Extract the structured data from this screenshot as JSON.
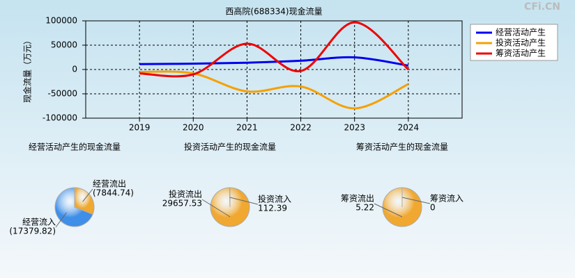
{
  "watermark": "CFi.CN",
  "chart_data": [
    {
      "type": "line",
      "title": "西高院(688334)现金流量",
      "y_label": "现金流量（万元）",
      "categories": [
        "2019",
        "2020",
        "2021",
        "2022",
        "2023",
        "2024"
      ],
      "series": [
        {
          "name": "经营活动产生",
          "color": "#0000ee",
          "values": [
            11000,
            12000,
            14000,
            18000,
            25000,
            8000
          ]
        },
        {
          "name": "投资活动产生",
          "color": "#f5a000",
          "values": [
            -5000,
            -8000,
            -45000,
            -35000,
            -80000,
            -30000
          ]
        },
        {
          "name": "筹资活动产生",
          "color": "#ee0000",
          "values": [
            -8000,
            -10000,
            53000,
            -3000,
            97000,
            0
          ]
        }
      ],
      "ylim": [
        -100000,
        100000
      ],
      "yticks": [
        -100000,
        -50000,
        0,
        50000,
        100000
      ],
      "grid": true,
      "legend": "top-right"
    },
    {
      "type": "pie",
      "title": "经营活动产生的现金流量",
      "categories": [
        "经营流出",
        "经营流入"
      ],
      "values": [
        7844.74,
        17379.82
      ],
      "value_labels": [
        "(7844.74)",
        "(17379.82)"
      ],
      "colors": [
        "#f0a830",
        "#3f8ee8"
      ]
    },
    {
      "type": "pie",
      "title": "投资活动产生的现金流量",
      "categories": [
        "投资流出",
        "投资流入"
      ],
      "values": [
        29657.53,
        112.39
      ],
      "colors": [
        "#f0a830",
        "#3f8ee8"
      ]
    },
    {
      "type": "pie",
      "title": "筹资活动产生的现金流量",
      "categories": [
        "筹资流出",
        "筹资流入"
      ],
      "values": [
        5.22,
        0
      ],
      "colors": [
        "#f0a830",
        "#3f8ee8"
      ]
    }
  ]
}
